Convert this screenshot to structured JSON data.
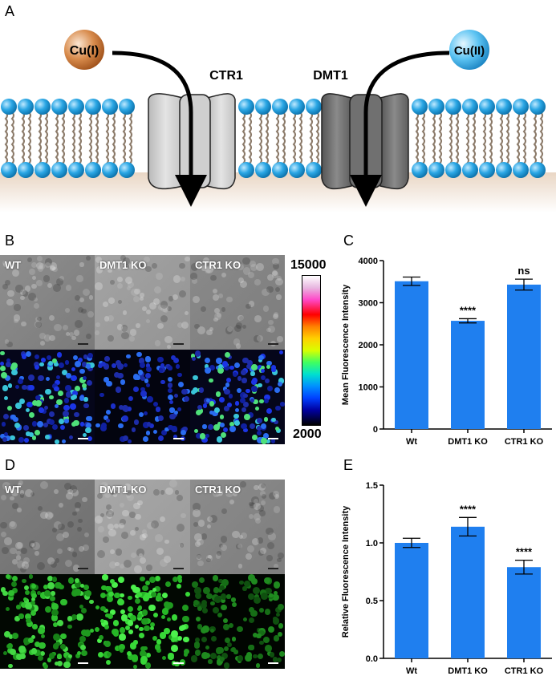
{
  "panels": {
    "a": "A",
    "b": "B",
    "c": "C",
    "d": "D",
    "e": "E"
  },
  "schematic": {
    "ion_left": "Cu(I)",
    "ion_right": "Cu(II)",
    "transporter_left": "CTR1",
    "transporter_right": "DMT1",
    "colors": {
      "cu1": "#c8763a",
      "cu2": "#4bb8ee",
      "lipid_head": "#2aa6e4",
      "tail": "#8c7b6a"
    }
  },
  "micrographs_b": {
    "labels": [
      "WT",
      "DMT1 KO",
      "CTR1 KO"
    ],
    "colorbar": {
      "max": "15000",
      "min": "2000"
    }
  },
  "micrographs_d": {
    "labels": [
      "WT",
      "DMT1 KO",
      "CTR1 KO"
    ]
  },
  "chart_data": [
    {
      "type": "bar",
      "panel": "C",
      "categories": [
        "Wt",
        "DMT1 KO",
        "CTR1 KO"
      ],
      "values": [
        3510,
        2570,
        3430
      ],
      "errors": [
        100,
        50,
        130
      ],
      "annotations": [
        "",
        "****",
        "ns"
      ],
      "ylabel": "Mean Fluorescence Intensity",
      "ylim": [
        0,
        4000
      ],
      "yticks": [
        "0",
        "1000",
        "2000",
        "3000",
        "4000"
      ],
      "color": "#1f7fef"
    },
    {
      "type": "bar",
      "panel": "E",
      "categories": [
        "Wt",
        "DMT1 KO",
        "CTR1 KO"
      ],
      "values": [
        1.0,
        1.14,
        0.79
      ],
      "errors": [
        0.04,
        0.08,
        0.06
      ],
      "annotations": [
        "",
        "****",
        "****"
      ],
      "ylabel": "Relative Fluorescence Intensity",
      "ylim": [
        0,
        1.5
      ],
      "yticks": [
        "0.0",
        "0.5",
        "1.0",
        "1.5"
      ],
      "color": "#1f7fef"
    }
  ]
}
